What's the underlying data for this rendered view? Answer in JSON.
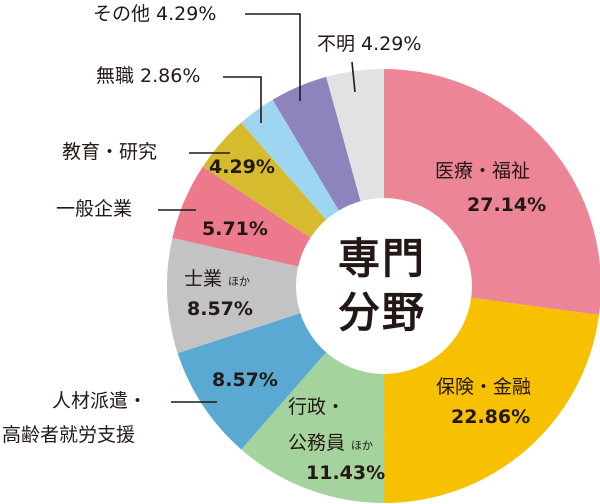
{
  "chart_data": {
    "type": "pie",
    "variant": "donut",
    "title": "専門分野",
    "center_label": [
      "専門",
      "分野"
    ],
    "start_angle_deg": 0,
    "direction": "clockwise",
    "unit": "%",
    "legend": "none (labels on/near slices)",
    "categories": [
      "医療・福祉",
      "保険・金融",
      "行政・公務員ほか",
      "人材派遣・高齢者就労支援",
      "士業ほか",
      "一般企業",
      "教育・研究",
      "無職",
      "その他",
      "不明"
    ],
    "values": [
      27.14,
      22.86,
      11.43,
      8.57,
      8.57,
      5.71,
      4.29,
      2.86,
      4.29,
      4.29
    ],
    "colors": [
      "#ec8595",
      "#f7c000",
      "#a5d39e",
      "#5aa9d3",
      "#c3c2c4",
      "#ec7a8c",
      "#d6bb2f",
      "#9ed5f0",
      "#8f83bd",
      "#e3e2e3"
    ]
  },
  "labels": {
    "iryo_name": "医療・福祉",
    "iryo_pct": "27.14%",
    "hoken_name": "保険・金融",
    "hoken_pct": "22.86%",
    "gyosei_name1": "行政・",
    "gyosei_name2": "公務員",
    "gyosei_hoka": "ほか",
    "gyosei_pct": "11.43%",
    "jinzai_name1": "人材派遣・",
    "jinzai_name2": "高齢者就労支援",
    "jinzai_pct": "8.57%",
    "shigyo_name": "士業",
    "shigyo_hoka": "ほか",
    "shigyo_pct": "8.57%",
    "ippan_name": "一般企業",
    "ippan_pct": "5.71%",
    "kyoiku_name": "教育・研究",
    "kyoiku_pct": "4.29%",
    "mushoku": "無職 2.86%",
    "sonota": "その他 4.29%",
    "fumei": "不明 4.29%",
    "center1": "専門",
    "center2": "分野"
  }
}
